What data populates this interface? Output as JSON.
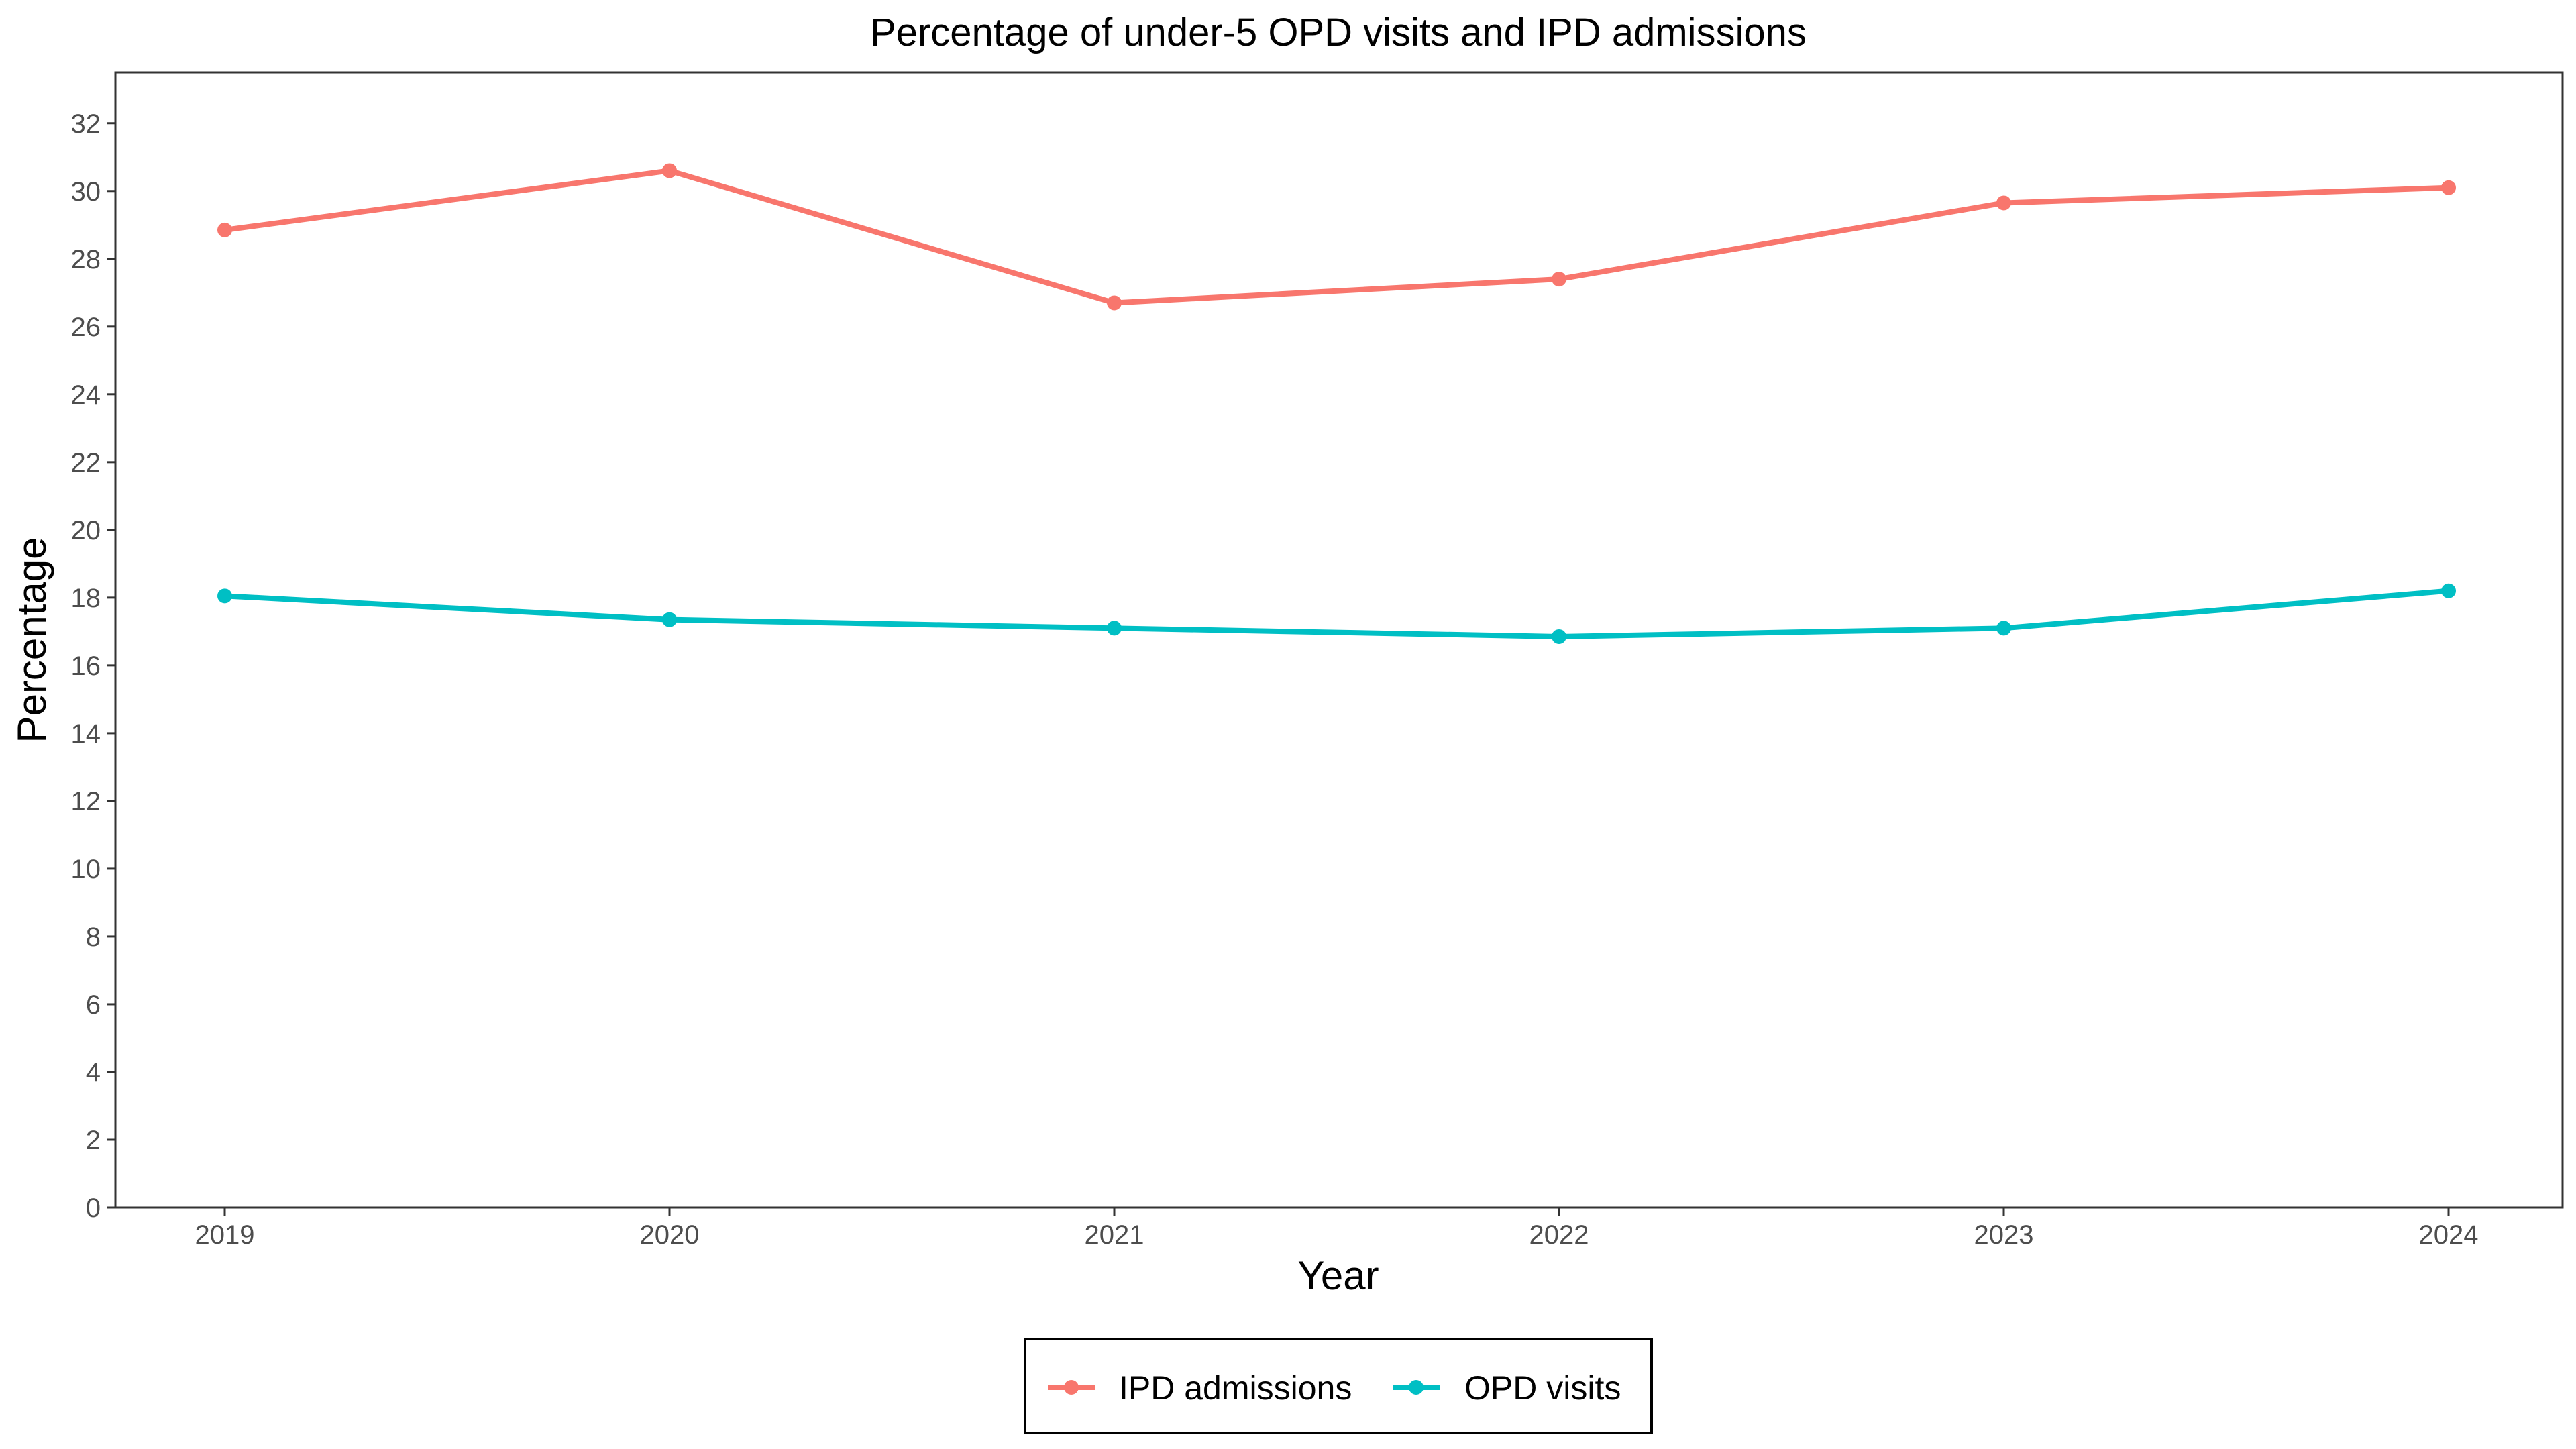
{
  "chart_data": {
    "type": "line",
    "title": "Percentage of under-5 OPD visits and IPD admissions",
    "xlabel": "Year",
    "ylabel": "Percentage",
    "categories": [
      "2019",
      "2020",
      "2021",
      "2022",
      "2023",
      "2024"
    ],
    "ylim": [
      0,
      33.5
    ],
    "yticks": [
      0,
      2,
      4,
      6,
      8,
      10,
      12,
      14,
      16,
      18,
      20,
      22,
      24,
      26,
      28,
      30,
      32
    ],
    "grid": false,
    "legend_position": "bottom",
    "series": [
      {
        "name": "IPD admissions",
        "color": "#F8766D",
        "values": [
          28.85,
          30.6,
          26.7,
          27.4,
          29.65,
          30.1
        ]
      },
      {
        "name": "OPD visits",
        "color": "#00BFC4",
        "values": [
          18.05,
          17.35,
          17.1,
          16.85,
          17.1,
          18.2
        ]
      }
    ]
  }
}
